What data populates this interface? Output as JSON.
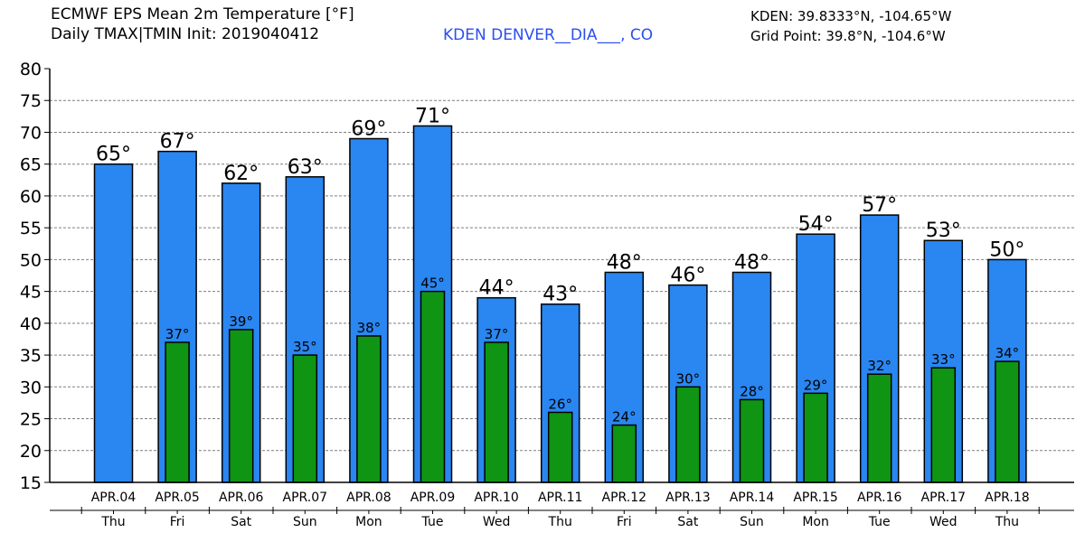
{
  "header": {
    "title_line1": "ECMWF EPS Mean 2m Temperature [°F]",
    "title_line2": "Daily TMAX|TMIN Init: 2019040412",
    "station_name": "KDEN DENVER__DIA___, CO",
    "station_coords": "KDEN: 39.8333°N, -104.65°W",
    "grid_point": "Grid Point: 39.8°N, -104.6°W"
  },
  "colors": {
    "tmax_bar": "#2a86f0",
    "tmin_bar": "#0f9414",
    "station_text": "#2a4ff0",
    "grid": "#7f7f7f"
  },
  "chart_data": {
    "type": "bar",
    "title": "ECMWF EPS Mean 2m Temperature [°F]",
    "ylim": [
      15,
      80
    ],
    "yticks": [
      15,
      20,
      25,
      30,
      35,
      40,
      45,
      50,
      55,
      60,
      65,
      70,
      75,
      80
    ],
    "grid": true,
    "categories": [
      "APR.04",
      "APR.05",
      "APR.06",
      "APR.07",
      "APR.08",
      "APR.09",
      "APR.10",
      "APR.11",
      "APR.12",
      "APR.13",
      "APR.14",
      "APR.15",
      "APR.16",
      "APR.17",
      "APR.18"
    ],
    "weekdays": [
      "Thu",
      "Fri",
      "Sat",
      "Sun",
      "Mon",
      "Tue",
      "Wed",
      "Thu",
      "Fri",
      "Sat",
      "Sun",
      "Mon",
      "Tue",
      "Wed",
      "Thu"
    ],
    "series": [
      {
        "name": "TMAX",
        "values": [
          65,
          67,
          62,
          63,
          69,
          71,
          44,
          43,
          48,
          46,
          48,
          54,
          57,
          53,
          50
        ],
        "labels": [
          "65°",
          "67°",
          "62°",
          "63°",
          "69°",
          "71°",
          "44°",
          "43°",
          "48°",
          "46°",
          "48°",
          "54°",
          "57°",
          "53°",
          "50°"
        ]
      },
      {
        "name": "TMIN",
        "values": [
          null,
          37,
          39,
          35,
          38,
          45,
          37,
          26,
          24,
          30,
          28,
          29,
          32,
          33,
          34
        ],
        "labels": [
          "",
          "37°",
          "39°",
          "35°",
          "38°",
          "45°",
          "37°",
          "26°",
          "24°",
          "30°",
          "28°",
          "29°",
          "32°",
          "33°",
          "34°"
        ]
      }
    ]
  }
}
